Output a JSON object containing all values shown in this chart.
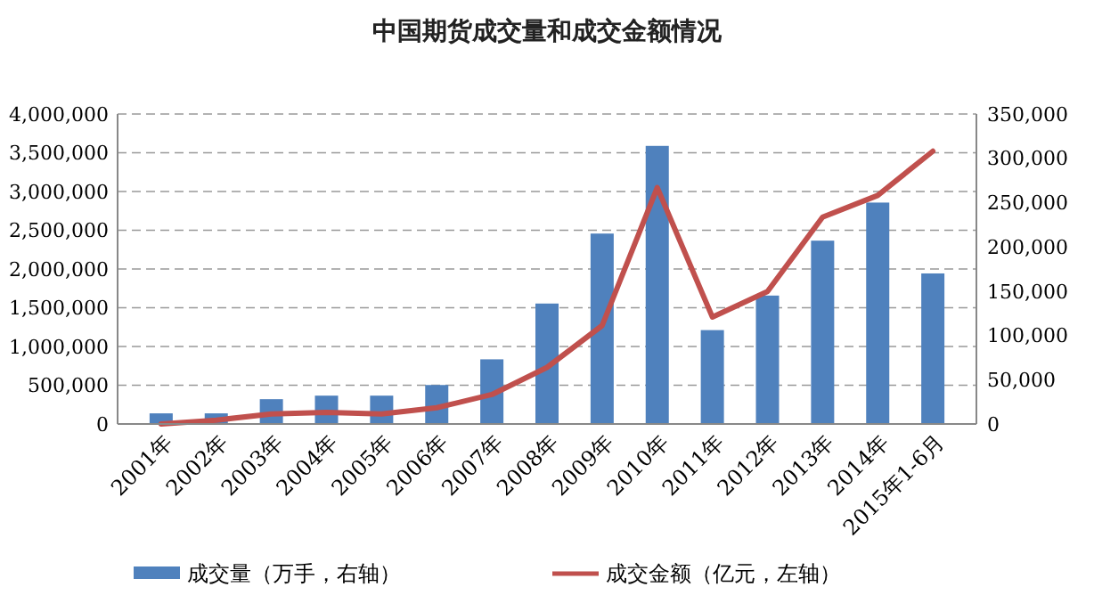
{
  "chart_data": {
    "type": "bar",
    "title": "中国期货成交量和成交金额情况",
    "categories": [
      "2001年",
      "2002年",
      "2003年",
      "2004年",
      "2005年",
      "2006年",
      "2007年",
      "2008年",
      "2009年",
      "2010年",
      "2011年",
      "2012年",
      "2013年",
      "2014年",
      "2015年1-6月"
    ],
    "series": [
      {
        "name": "成交量（万手，右轴）",
        "axis": "y2",
        "color": "#4f81bd",
        "values": [
          12000,
          12000,
          28000,
          32000,
          32000,
          44000,
          73000,
          136000,
          215000,
          314000,
          106000,
          145000,
          207000,
          250000,
          170000
        ]
      },
      {
        "name": "成交金额（亿元，左轴）",
        "type": "line",
        "color": "#c0504d",
        "values": [
          0,
          50000,
          130000,
          150000,
          130000,
          210000,
          380000,
          730000,
          1270000,
          3050000,
          1380000,
          1710000,
          2670000,
          2950000,
          3520000
        ]
      }
    ],
    "ylim": [
      0,
      4000000
    ],
    "yticks": [
      {
        "value": 0,
        "label": "0"
      },
      {
        "value": 500000,
        "label": "500,000"
      },
      {
        "value": 1000000,
        "label": "1,000,000"
      },
      {
        "value": 1500000,
        "label": "1,500,000"
      },
      {
        "value": 2000000,
        "label": "2,000,000"
      },
      {
        "value": 2500000,
        "label": "2,500,000"
      },
      {
        "value": 3000000,
        "label": "3,000,000"
      },
      {
        "value": 3500000,
        "label": "3,500,000"
      },
      {
        "value": 4000000,
        "label": "4,000,000"
      }
    ],
    "y2lim": [
      0,
      350000
    ],
    "y2ticks": [
      {
        "value": 0,
        "label": "0"
      },
      {
        "value": 50000,
        "label": "50,000"
      },
      {
        "value": 100000,
        "label": "100,000"
      },
      {
        "value": 150000,
        "label": "150,000"
      },
      {
        "value": 200000,
        "label": "200,000"
      },
      {
        "value": 250000,
        "label": "250,000"
      },
      {
        "value": 300000,
        "label": "300,000"
      },
      {
        "value": 350000,
        "label": "350,000"
      }
    ],
    "grid": "y",
    "legend": "bottom",
    "marker": "none",
    "line_style": "solid"
  }
}
